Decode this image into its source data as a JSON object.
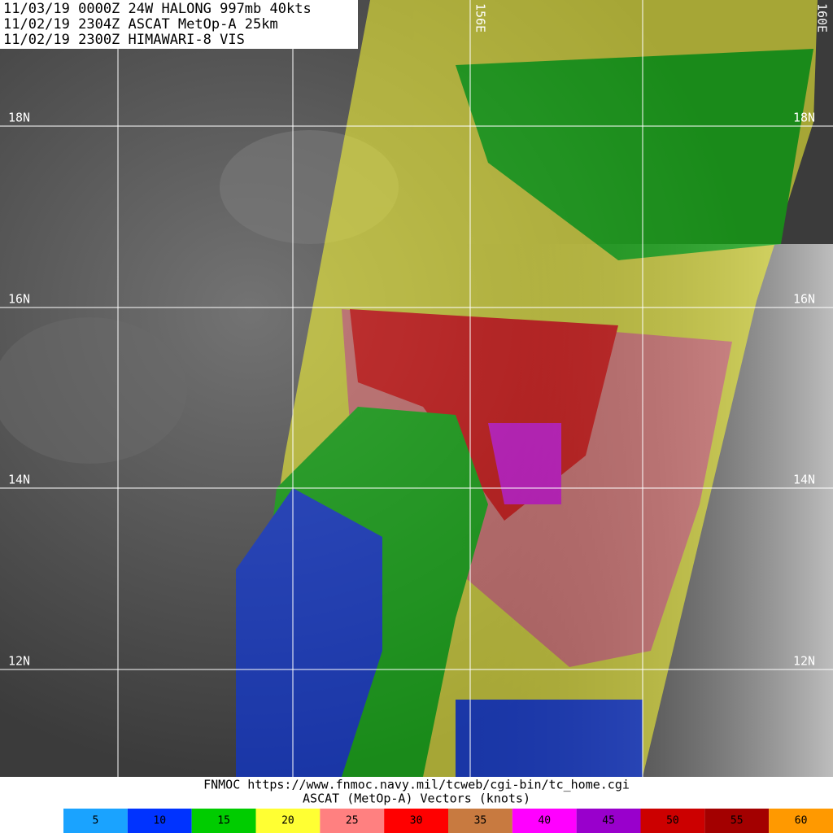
{
  "header": {
    "lines": [
      "11/03/19 0000Z  24W HALONG 997mb 40kts",
      "11/02/19 2304Z  ASCAT MetOp-A 25km",
      "11/02/19 2300Z  HIMAWARI-8 VIS"
    ]
  },
  "lat_labels": [
    "18N",
    "16N",
    "14N",
    "12N"
  ],
  "lon_labels": [
    "156E",
    "160E"
  ],
  "footer": {
    "lines": [
      "FNMOC https://www.fnmoc.navy.mil/tcweb/cgi-bin/tc_home.cgi",
      "ASCAT (MetOp-A) Vectors (knots)"
    ]
  },
  "legend": {
    "items": [
      {
        "label": 5,
        "color": "#1aa3ff"
      },
      {
        "label": 10,
        "color": "#0033ff"
      },
      {
        "label": 15,
        "color": "#00cc00"
      },
      {
        "label": 20,
        "color": "#ffff33"
      },
      {
        "label": 25,
        "color": "#ff8080"
      },
      {
        "label": 30,
        "color": "#ff0000"
      },
      {
        "label": 35,
        "color": "#c87a40"
      },
      {
        "label": 40,
        "color": "#ff00ff"
      },
      {
        "label": 45,
        "color": "#9900cc"
      },
      {
        "label": 50,
        "color": "#cc0000"
      },
      {
        "label": 55,
        "color": "#a30000"
      },
      {
        "label": 60,
        "color": "#ff9900"
      }
    ]
  }
}
